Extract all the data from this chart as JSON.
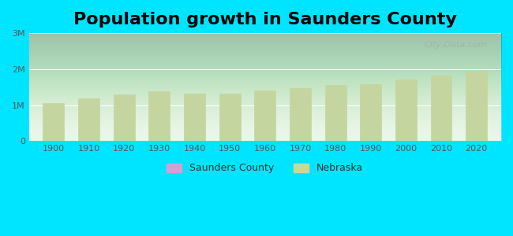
{
  "title": "Population growth in Saunders County",
  "years": [
    1900,
    1910,
    1920,
    1930,
    1940,
    1950,
    1960,
    1970,
    1980,
    1990,
    2000,
    2010,
    2020
  ],
  "nebraska_values": [
    1066300,
    1192214,
    1296372,
    1377963,
    1315834,
    1325510,
    1411330,
    1483791,
    1569825,
    1578385,
    1711263,
    1826341,
    1961504
  ],
  "bar_color": "#c5d5a0",
  "bar_edge_color": "#c5d5a0",
  "background_top": "#e8f5e8",
  "background_bottom": "#f0fff0",
  "outer_bg": "#00e5ff",
  "ylabel_ticks": [
    "0",
    "1M",
    "2M",
    "3M"
  ],
  "ytick_values": [
    0,
    1000000,
    2000000,
    3000000
  ],
  "ylim": [
    0,
    3000000
  ],
  "legend_county_color": "#d4a0d4",
  "legend_nebraska_color": "#c8d898",
  "watermark": "City-Data.com",
  "title_fontsize": 16,
  "title_fontweight": "bold"
}
